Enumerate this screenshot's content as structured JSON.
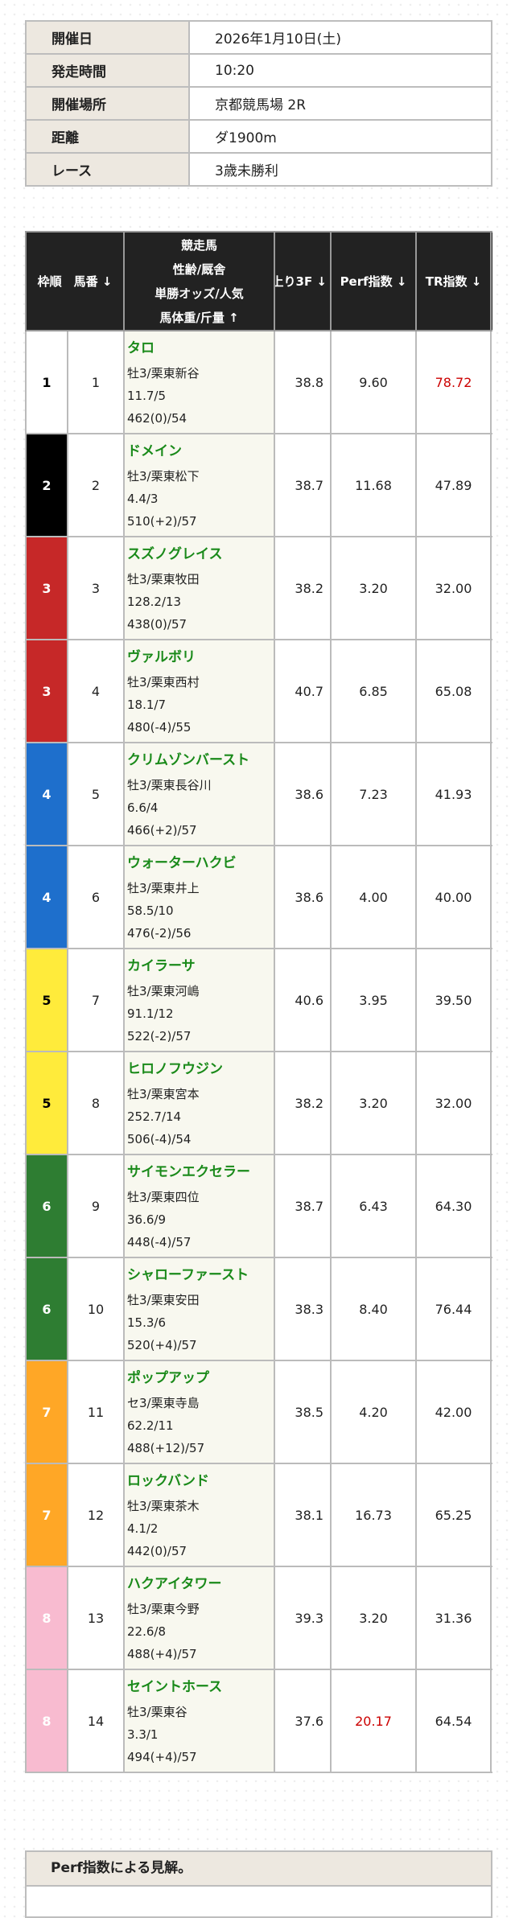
{
  "race_info": [
    {
      "label": "開催日",
      "value": "2026年1月10日(土)"
    },
    {
      "label": "発走時間",
      "value": "10:20"
    },
    {
      "label": "開催場所",
      "value": "京都競馬場 2R"
    },
    {
      "label": "距離",
      "value": "ダ1900m"
    },
    {
      "label": "レース",
      "value": "3歳未勝利"
    }
  ],
  "table": {
    "headers": {
      "frame_umaban": "枠順　馬番 ↓",
      "horse": [
        "競走馬",
        "性齢/厩舎",
        "単勝オッズ/人気",
        "馬体重/斤量 ↑"
      ],
      "last3f": "上り3F ↓",
      "perf": "Perf指数 ↓",
      "tr": "TR指数 ↓"
    },
    "frame_colors": {
      "1": "#ffffff",
      "2": "#000000",
      "3": "#c62828",
      "4": "#1e6fcc",
      "5": "#ffeb3b",
      "6": "#2e7d32",
      "7": "#ffa726",
      "8": "#f8bbd0"
    },
    "highlight_color": "#cc0000",
    "rows": [
      {
        "frame": "1",
        "umaban": "1",
        "name": "タロ",
        "sex_trainer": "牡3/栗東新谷",
        "odds": "11.7/5",
        "weight": "462(0)/54",
        "last3f": "38.8",
        "perf": "9.60",
        "tr": "78.72",
        "tr_red": true
      },
      {
        "frame": "2",
        "umaban": "2",
        "name": "ドメイン",
        "sex_trainer": "牡3/栗東松下",
        "odds": "4.4/3",
        "weight": "510(+2)/57",
        "last3f": "38.7",
        "perf": "11.68",
        "tr": "47.89"
      },
      {
        "frame": "3",
        "umaban": "3",
        "name": "スズノグレイス",
        "sex_trainer": "牡3/栗東牧田",
        "odds": "128.2/13",
        "weight": "438(0)/57",
        "last3f": "38.2",
        "perf": "3.20",
        "tr": "32.00"
      },
      {
        "frame": "3",
        "umaban": "4",
        "name": "ヴァルボリ",
        "sex_trainer": "牡3/栗東西村",
        "odds": "18.1/7",
        "weight": "480(-4)/55",
        "last3f": "40.7",
        "perf": "6.85",
        "tr": "65.08"
      },
      {
        "frame": "4",
        "umaban": "5",
        "name": "クリムゾンバースト",
        "sex_trainer": "牡3/栗東長谷川",
        "odds": "6.6/4",
        "weight": "466(+2)/57",
        "last3f": "38.6",
        "perf": "7.23",
        "tr": "41.93"
      },
      {
        "frame": "4",
        "umaban": "6",
        "name": "ウォーターハクビ",
        "sex_trainer": "牡3/栗東井上",
        "odds": "58.5/10",
        "weight": "476(-2)/56",
        "last3f": "38.6",
        "perf": "4.00",
        "tr": "40.00"
      },
      {
        "frame": "5",
        "umaban": "7",
        "name": "カイラーサ",
        "sex_trainer": "牡3/栗東河嶋",
        "odds": "91.1/12",
        "weight": "522(-2)/57",
        "last3f": "40.6",
        "perf": "3.95",
        "tr": "39.50"
      },
      {
        "frame": "5",
        "umaban": "8",
        "name": "ヒロノフウジン",
        "sex_trainer": "牡3/栗東宮本",
        "odds": "252.7/14",
        "weight": "506(-4)/54",
        "last3f": "38.2",
        "perf": "3.20",
        "tr": "32.00"
      },
      {
        "frame": "6",
        "umaban": "9",
        "name": "サイモンエクセラー",
        "sex_trainer": "牡3/栗東四位",
        "odds": "36.6/9",
        "weight": "448(-4)/57",
        "last3f": "38.7",
        "perf": "6.43",
        "tr": "64.30"
      },
      {
        "frame": "6",
        "umaban": "10",
        "name": "シャローファースト",
        "sex_trainer": "牡3/栗東安田",
        "odds": "15.3/6",
        "weight": "520(+4)/57",
        "last3f": "38.3",
        "perf": "8.40",
        "tr": "76.44"
      },
      {
        "frame": "7",
        "umaban": "11",
        "name": "ポップアップ",
        "sex_trainer": "セ3/栗東寺島",
        "odds": "62.2/11",
        "weight": "488(+12)/57",
        "last3f": "38.5",
        "perf": "4.20",
        "tr": "42.00"
      },
      {
        "frame": "7",
        "umaban": "12",
        "name": "ロックバンド",
        "sex_trainer": "牡3/栗東茶木",
        "odds": "4.1/2",
        "weight": "442(0)/57",
        "last3f": "38.1",
        "perf": "16.73",
        "tr": "65.25"
      },
      {
        "frame": "8",
        "umaban": "13",
        "name": "ハクアイタワー",
        "sex_trainer": "牡3/栗東今野",
        "odds": "22.6/8",
        "weight": "488(+4)/57",
        "last3f": "39.3",
        "perf": "3.20",
        "tr": "31.36"
      },
      {
        "frame": "8",
        "umaban": "14",
        "name": "セイントホース",
        "sex_trainer": "牡3/栗東谷",
        "odds": "3.3/1",
        "weight": "494(+4)/57",
        "last3f": "37.6",
        "perf": "20.17",
        "tr": "64.54",
        "perf_red": true
      }
    ]
  },
  "perf_section": {
    "title": "Perf指数による見解。"
  }
}
